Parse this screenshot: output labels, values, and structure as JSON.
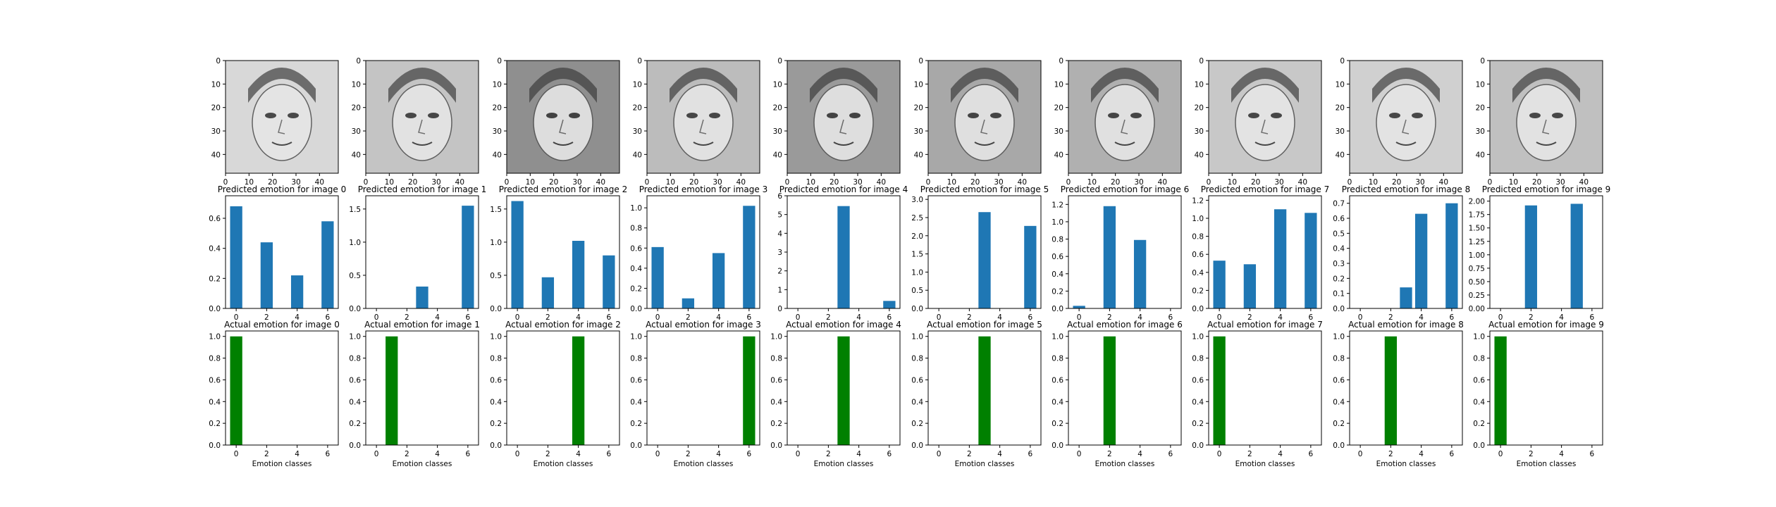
{
  "figure": {
    "background": "#ffffff",
    "axis_color": "#000000",
    "pred_color": "#1f77b4",
    "actual_color": "#008000",
    "xlabel": "Emotion classes"
  },
  "images": [
    {
      "index": 0,
      "tone": "#d8d8d8",
      "style": "cartoon"
    },
    {
      "index": 1,
      "tone": "#c4c4c4",
      "style": "tilted"
    },
    {
      "index": 2,
      "tone": "#8f8f8f",
      "style": "older"
    },
    {
      "index": 3,
      "tone": "#bcbcbc",
      "style": "blonde"
    },
    {
      "index": 4,
      "tone": "#9a9a9a",
      "style": "glasses"
    },
    {
      "index": 5,
      "tone": "#a8a8a8",
      "style": "dark-hair"
    },
    {
      "index": 6,
      "tone": "#b0b0b0",
      "style": "crying"
    },
    {
      "index": 7,
      "tone": "#c8c8c8",
      "style": "sketch"
    },
    {
      "index": 8,
      "tone": "#d0d0d0",
      "style": "man-hand"
    },
    {
      "index": 9,
      "tone": "#c0c0c0",
      "style": "headset"
    }
  ],
  "image_axis": {
    "xticks": [
      "0",
      "10",
      "20",
      "30",
      "40"
    ],
    "yticks": [
      "0",
      "10",
      "20",
      "30",
      "40"
    ],
    "range": [
      0,
      48
    ]
  },
  "chart_data": [
    {
      "type": "bar",
      "title": "Predicted emotion for image 0",
      "x": [
        0,
        1,
        2,
        3,
        4,
        5,
        6
      ],
      "values": [
        0.68,
        0,
        0.44,
        0,
        0.22,
        0,
        0.58
      ],
      "ylim": [
        0,
        0.75
      ],
      "yticks": [
        "0.0",
        "0.2",
        "0.4",
        "0.6"
      ],
      "xticks": [
        "0",
        "2",
        "4",
        "6"
      ]
    },
    {
      "type": "bar",
      "title": "Predicted emotion for image 1",
      "x": [
        0,
        1,
        2,
        3,
        4,
        5,
        6
      ],
      "values": [
        0,
        0,
        0,
        0.33,
        0,
        0,
        1.55
      ],
      "ylim": [
        0,
        1.7
      ],
      "yticks": [
        "0.0",
        "0.5",
        "1.0",
        "1.5"
      ],
      "xticks": [
        "0",
        "2",
        "4",
        "6"
      ]
    },
    {
      "type": "bar",
      "title": "Predicted emotion for image 2",
      "x": [
        0,
        1,
        2,
        3,
        4,
        5,
        6
      ],
      "values": [
        1.62,
        0,
        0.47,
        0,
        1.02,
        0,
        0.8
      ],
      "ylim": [
        0,
        1.7
      ],
      "yticks": [
        "0.0",
        "0.5",
        "1.0",
        "1.5"
      ],
      "xticks": [
        "0",
        "2",
        "4",
        "6"
      ]
    },
    {
      "type": "bar",
      "title": "Predicted emotion for image 3",
      "x": [
        0,
        1,
        2,
        3,
        4,
        5,
        6
      ],
      "values": [
        0.61,
        0,
        0.1,
        0,
        0.55,
        0,
        1.02
      ],
      "ylim": [
        0,
        1.12
      ],
      "yticks": [
        "0.0",
        "0.2",
        "0.4",
        "0.6",
        "0.8",
        "1.0"
      ],
      "xticks": [
        "0",
        "2",
        "4",
        "6"
      ]
    },
    {
      "type": "bar",
      "title": "Predicted emotion for image 4",
      "x": [
        0,
        1,
        2,
        3,
        4,
        5,
        6
      ],
      "values": [
        0,
        0,
        0,
        5.45,
        0,
        0,
        0.4
      ],
      "ylim": [
        0,
        6
      ],
      "yticks": [
        "0",
        "1",
        "2",
        "3",
        "4",
        "5",
        "6"
      ],
      "xticks": [
        "0",
        "2",
        "4",
        "6"
      ]
    },
    {
      "type": "bar",
      "title": "Predicted emotion for image 5",
      "x": [
        0,
        1,
        2,
        3,
        4,
        5,
        6
      ],
      "values": [
        0,
        0,
        0,
        2.65,
        0,
        0,
        2.27
      ],
      "ylim": [
        0,
        3.1
      ],
      "yticks": [
        "0.0",
        "0.5",
        "1.0",
        "1.5",
        "2.0",
        "2.5",
        "3.0"
      ],
      "xticks": [
        "0",
        "2",
        "4",
        "6"
      ]
    },
    {
      "type": "bar",
      "title": "Predicted emotion for image 6",
      "x": [
        0,
        1,
        2,
        3,
        4,
        5,
        6
      ],
      "values": [
        0.03,
        0,
        1.18,
        0,
        0.79,
        0,
        0
      ],
      "ylim": [
        0,
        1.3
      ],
      "yticks": [
        "0.0",
        "0.2",
        "0.4",
        "0.6",
        "0.8",
        "1.0",
        "1.2"
      ],
      "xticks": [
        "0",
        "2",
        "4",
        "6"
      ]
    },
    {
      "type": "bar",
      "title": "Predicted emotion for image 7",
      "x": [
        0,
        1,
        2,
        3,
        4,
        5,
        6
      ],
      "values": [
        0.53,
        0,
        0.49,
        0,
        1.1,
        0,
        1.06
      ],
      "ylim": [
        0,
        1.25
      ],
      "yticks": [
        "0.0",
        "0.2",
        "0.4",
        "0.6",
        "0.8",
        "1.0",
        "1.2"
      ],
      "xticks": [
        "0",
        "2",
        "4",
        "6"
      ]
    },
    {
      "type": "bar",
      "title": "Predicted emotion for image 8",
      "x": [
        0,
        1,
        2,
        3,
        4,
        5,
        6
      ],
      "values": [
        0,
        0,
        0,
        0.14,
        0.63,
        0,
        0.7
      ],
      "ylim": [
        0,
        0.75
      ],
      "yticks": [
        "0.0",
        "0.1",
        "0.2",
        "0.3",
        "0.4",
        "0.5",
        "0.6",
        "0.7"
      ],
      "xticks": [
        "0",
        "2",
        "4",
        "6"
      ]
    },
    {
      "type": "bar",
      "title": "Predicted emotion for image 9",
      "x": [
        0,
        1,
        2,
        3,
        4,
        5,
        6
      ],
      "values": [
        0,
        0,
        1.92,
        0,
        0,
        1.95,
        0
      ],
      "ylim": [
        0,
        2.1
      ],
      "yticks": [
        "0.00",
        "0.25",
        "0.50",
        "0.75",
        "1.00",
        "1.25",
        "1.50",
        "1.75",
        "2.00"
      ],
      "xticks": [
        "0",
        "2",
        "4",
        "6"
      ]
    },
    {
      "type": "bar",
      "title": "Actual emotion for image 0",
      "x": [
        0,
        1,
        2,
        3,
        4,
        5,
        6
      ],
      "values": [
        1,
        0,
        0,
        0,
        0,
        0,
        0
      ],
      "ylim": [
        0,
        1.05
      ],
      "yticks": [
        "0.0",
        "0.2",
        "0.4",
        "0.6",
        "0.8",
        "1.0"
      ],
      "xticks": [
        "0",
        "2",
        "4",
        "6"
      ],
      "xlabel": "Emotion classes"
    },
    {
      "type": "bar",
      "title": "Actual emotion for image 1",
      "x": [
        0,
        1,
        2,
        3,
        4,
        5,
        6
      ],
      "values": [
        0,
        1,
        0,
        0,
        0,
        0,
        0
      ],
      "ylim": [
        0,
        1.05
      ],
      "yticks": [
        "0.0",
        "0.2",
        "0.4",
        "0.6",
        "0.8",
        "1.0"
      ],
      "xticks": [
        "0",
        "2",
        "4",
        "6"
      ],
      "xlabel": "Emotion classes"
    },
    {
      "type": "bar",
      "title": "Actual emotion for image 2",
      "x": [
        0,
        1,
        2,
        3,
        4,
        5,
        6
      ],
      "values": [
        0,
        0,
        0,
        0,
        1,
        0,
        0
      ],
      "ylim": [
        0,
        1.05
      ],
      "yticks": [
        "0.0",
        "0.2",
        "0.4",
        "0.6",
        "0.8",
        "1.0"
      ],
      "xticks": [
        "0",
        "2",
        "4",
        "6"
      ],
      "xlabel": "Emotion classes"
    },
    {
      "type": "bar",
      "title": "Actual emotion for image 3",
      "x": [
        0,
        1,
        2,
        3,
        4,
        5,
        6
      ],
      "values": [
        0,
        0,
        0,
        0,
        0,
        0,
        1
      ],
      "ylim": [
        0,
        1.05
      ],
      "yticks": [
        "0.0",
        "0.2",
        "0.4",
        "0.6",
        "0.8",
        "1.0"
      ],
      "xticks": [
        "0",
        "2",
        "4",
        "6"
      ],
      "xlabel": "Emotion classes"
    },
    {
      "type": "bar",
      "title": "Actual emotion for image 4",
      "x": [
        0,
        1,
        2,
        3,
        4,
        5,
        6
      ],
      "values": [
        0,
        0,
        0,
        1,
        0,
        0,
        0
      ],
      "ylim": [
        0,
        1.05
      ],
      "yticks": [
        "0.0",
        "0.2",
        "0.4",
        "0.6",
        "0.8",
        "1.0"
      ],
      "xticks": [
        "0",
        "2",
        "4",
        "6"
      ],
      "xlabel": "Emotion classes"
    },
    {
      "type": "bar",
      "title": "Actual emotion for image 5",
      "x": [
        0,
        1,
        2,
        3,
        4,
        5,
        6
      ],
      "values": [
        0,
        0,
        0,
        1,
        0,
        0,
        0
      ],
      "ylim": [
        0,
        1.05
      ],
      "yticks": [
        "0.0",
        "0.2",
        "0.4",
        "0.6",
        "0.8",
        "1.0"
      ],
      "xticks": [
        "0",
        "2",
        "4",
        "6"
      ],
      "xlabel": "Emotion classes"
    },
    {
      "type": "bar",
      "title": "Actual emotion for image 6",
      "x": [
        0,
        1,
        2,
        3,
        4,
        5,
        6
      ],
      "values": [
        0,
        0,
        1,
        0,
        0,
        0,
        0
      ],
      "ylim": [
        0,
        1.05
      ],
      "yticks": [
        "0.0",
        "0.2",
        "0.4",
        "0.6",
        "0.8",
        "1.0"
      ],
      "xticks": [
        "0",
        "2",
        "4",
        "6"
      ],
      "xlabel": "Emotion classes"
    },
    {
      "type": "bar",
      "title": "Actual emotion for image 7",
      "x": [
        0,
        1,
        2,
        3,
        4,
        5,
        6
      ],
      "values": [
        1,
        0,
        0,
        0,
        0,
        0,
        0
      ],
      "ylim": [
        0,
        1.05
      ],
      "yticks": [
        "0.0",
        "0.2",
        "0.4",
        "0.6",
        "0.8",
        "1.0"
      ],
      "xticks": [
        "0",
        "2",
        "4",
        "6"
      ],
      "xlabel": "Emotion classes"
    },
    {
      "type": "bar",
      "title": "Actual emotion for image 8",
      "x": [
        0,
        1,
        2,
        3,
        4,
        5,
        6
      ],
      "values": [
        0,
        0,
        1,
        0,
        0,
        0,
        0
      ],
      "ylim": [
        0,
        1.05
      ],
      "yticks": [
        "0.0",
        "0.2",
        "0.4",
        "0.6",
        "0.8",
        "1.0"
      ],
      "xticks": [
        "0",
        "2",
        "4",
        "6"
      ],
      "xlabel": "Emotion classes"
    },
    {
      "type": "bar",
      "title": "Actual emotion for image 9",
      "x": [
        0,
        1,
        2,
        3,
        4,
        5,
        6
      ],
      "values": [
        1,
        0,
        0,
        0,
        0,
        0,
        0
      ],
      "ylim": [
        0,
        1.05
      ],
      "yticks": [
        "0.0",
        "0.2",
        "0.4",
        "0.6",
        "0.8",
        "1.0"
      ],
      "xticks": [
        "0",
        "2",
        "4",
        "6"
      ],
      "xlabel": "Emotion classes"
    }
  ]
}
